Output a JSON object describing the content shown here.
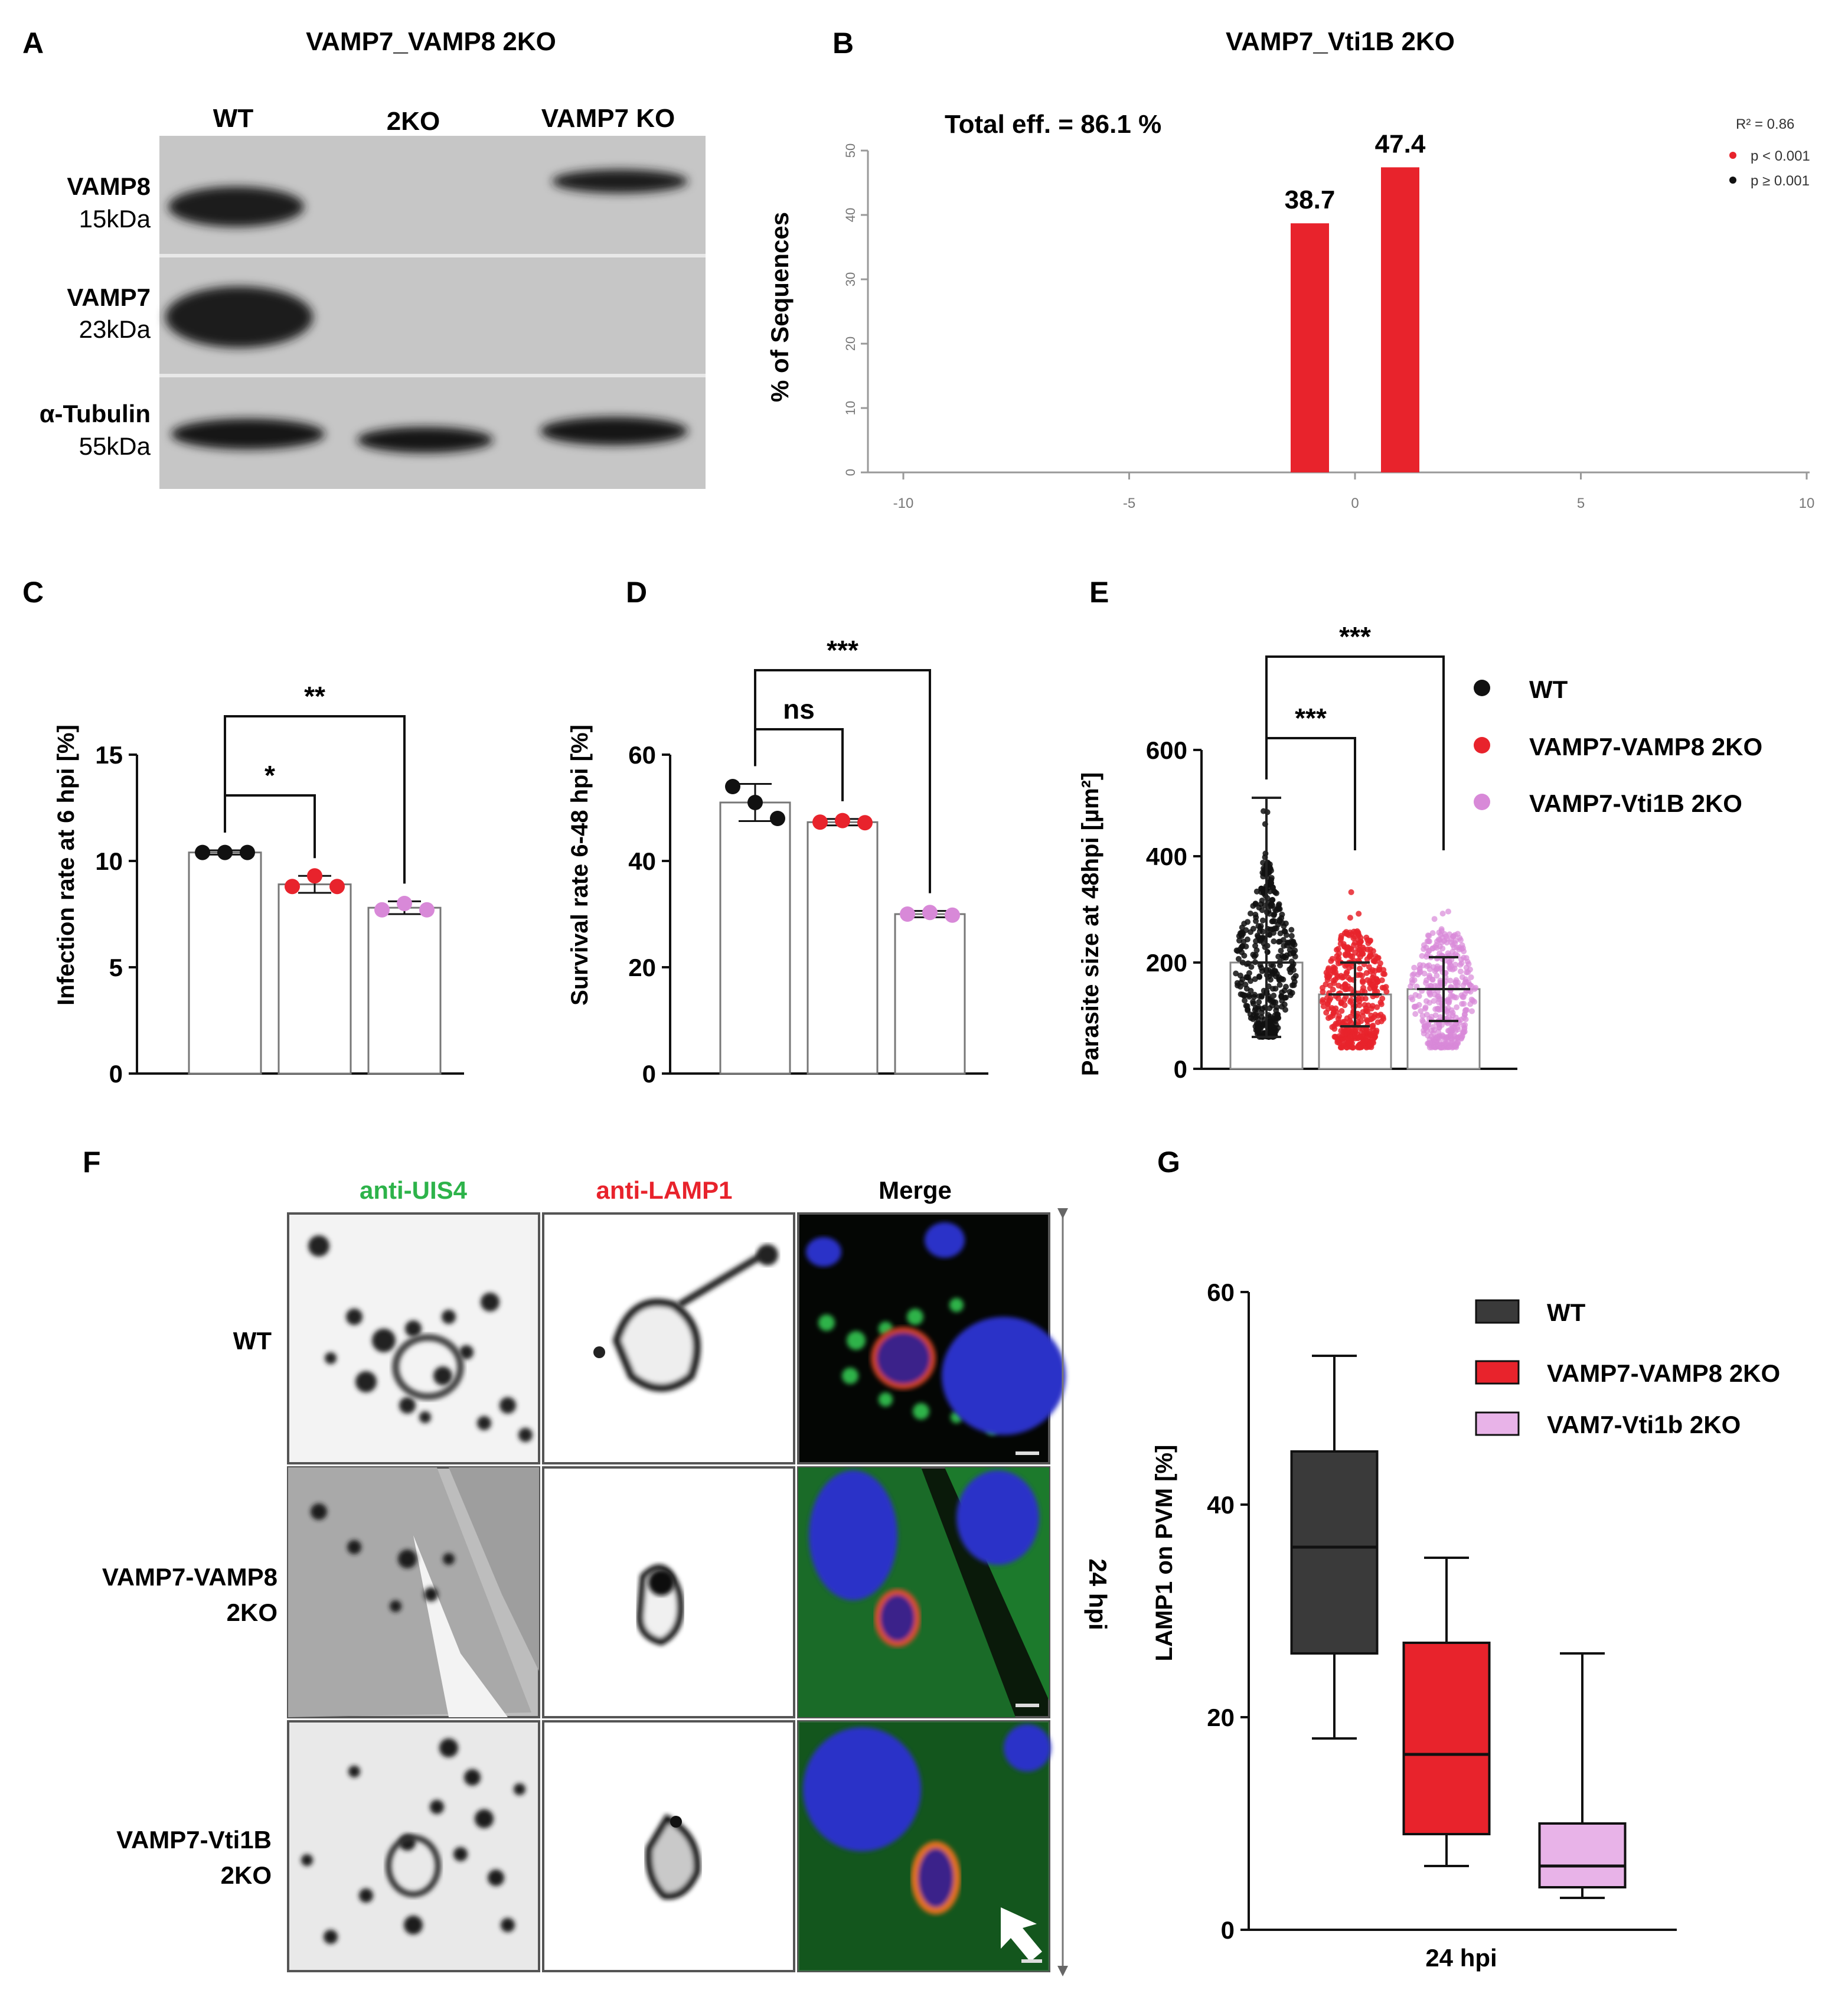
{
  "colors": {
    "red": "#e8232c",
    "pink": "#d889d8",
    "pink_light": "#e8b3e8",
    "dark": "#3a3a3a",
    "green": "#2db34a",
    "blot_bg": "#c7c7c7"
  },
  "panelA": {
    "letter": "A",
    "title": "VAMP7_VAMP8 2KO",
    "lanes": [
      "WT",
      "2KO",
      "VAMP7 KO"
    ],
    "rows": [
      {
        "name": "VAMP8",
        "size": "15kDa"
      },
      {
        "name": "VAMP7",
        "size": "23kDa"
      },
      {
        "name": "α-Tubulin",
        "size": "55kDa"
      }
    ]
  },
  "panelB": {
    "letter": "B",
    "title": "VAMP7_Vti1B 2KO",
    "total": "Total eff. = 86.1 %",
    "legend": {
      "r2": "R² = 0.86",
      "sig": "p < 0.001",
      "nonsig": "p ≥ 0.001"
    },
    "chart_data": {
      "type": "bar",
      "ylabel": "% of Sequences",
      "x": [
        -1,
        1
      ],
      "values": [
        38.7,
        47.4
      ],
      "data_labels": [
        "38.7",
        "47.4"
      ],
      "xlim": [
        -10,
        10
      ],
      "ylim": [
        0,
        50
      ],
      "xticks": [
        "-10",
        "-5",
        "0",
        "5",
        "10"
      ],
      "yticks": [
        "0",
        "10",
        "20",
        "30",
        "40",
        "50"
      ]
    }
  },
  "panelC": {
    "letter": "C",
    "chart_data": {
      "type": "bar",
      "ylabel": "Infection rate at 6 hpi [%]",
      "ylim": [
        0,
        15
      ],
      "yticks": [
        "0",
        "5",
        "10",
        "15"
      ],
      "groups": [
        {
          "mean": 10.4,
          "sd": 0.1,
          "points": [
            10.4,
            10.4,
            10.4
          ],
          "color": "black"
        },
        {
          "mean": 8.9,
          "sd": 0.4,
          "points": [
            8.8,
            9.3,
            8.8
          ],
          "color": "red"
        },
        {
          "mean": 7.8,
          "sd": 0.3,
          "points": [
            7.7,
            8.0,
            7.7
          ],
          "color": "pink"
        }
      ],
      "sig": [
        {
          "label": "*",
          "from": 0,
          "to": 1
        },
        {
          "label": "**",
          "from": 0,
          "to": 2
        }
      ]
    }
  },
  "panelD": {
    "letter": "D",
    "chart_data": {
      "type": "bar",
      "ylabel": "Survival rate 6-48 hpi [%]",
      "ylim": [
        0,
        60
      ],
      "yticks": [
        "0",
        "20",
        "40",
        "60"
      ],
      "groups": [
        {
          "mean": 51,
          "sd": 3.5,
          "points": [
            54,
            51,
            48
          ],
          "color": "black"
        },
        {
          "mean": 47.3,
          "sd": 0.6,
          "points": [
            47.3,
            47.6,
            47.2
          ],
          "color": "red"
        },
        {
          "mean": 30,
          "sd": 0.6,
          "points": [
            30,
            30.3,
            29.8
          ],
          "color": "pink"
        }
      ],
      "sig": [
        {
          "label": "ns",
          "from": 0,
          "to": 1
        },
        {
          "label": "***",
          "from": 0,
          "to": 2
        }
      ]
    }
  },
  "panelE": {
    "letter": "E",
    "legend": [
      "WT",
      "VAMP7-VAMP8 2KO",
      "VAMP7-Vti1B 2KO"
    ],
    "chart_data": {
      "type": "scatter",
      "ylabel": "Parasite size at 48hpi [µm²]",
      "ylim": [
        0,
        600
      ],
      "yticks": [
        "0",
        "200",
        "400",
        "600"
      ],
      "groups": [
        {
          "mean": 200,
          "sd_low": 60,
          "sd_high": 510,
          "color": "black"
        },
        {
          "mean": 140,
          "sd_low": 80,
          "sd_high": 200,
          "color": "red"
        },
        {
          "mean": 150,
          "sd_low": 90,
          "sd_high": 210,
          "color": "pink"
        }
      ],
      "sig": [
        {
          "label": "***",
          "from": 0,
          "to": 1
        },
        {
          "label": "***",
          "from": 0,
          "to": 2
        }
      ]
    }
  },
  "panelF": {
    "letter": "F",
    "cols": [
      "anti-UIS4",
      "anti-LAMP1",
      "Merge"
    ],
    "rows": [
      {
        "line1": "WT",
        "line2": ""
      },
      {
        "line1": "VAMP7-VAMP8",
        "line2": "2KO"
      },
      {
        "line1": "VAMP7-Vti1B",
        "line2": "2KO"
      }
    ],
    "side_label": "24 hpi"
  },
  "panelG": {
    "letter": "G",
    "legend": [
      "WT",
      "VAMP7-VAMP8 2KO",
      "VAM7-Vti1b 2KO"
    ],
    "chart_data": {
      "type": "box",
      "ylabel": "LAMP1 on PVM [%]",
      "xlabel": "24 hpi",
      "ylim": [
        0,
        60
      ],
      "yticks": [
        "0",
        "20",
        "40",
        "60"
      ],
      "boxes": [
        {
          "min": 18,
          "q1": 26,
          "median": 36,
          "q3": 45,
          "max": 54
        },
        {
          "min": 6,
          "q1": 9,
          "median": 16.5,
          "q3": 27,
          "max": 35
        },
        {
          "min": 3,
          "q1": 4,
          "median": 6,
          "q3": 10,
          "max": 26
        }
      ]
    }
  }
}
